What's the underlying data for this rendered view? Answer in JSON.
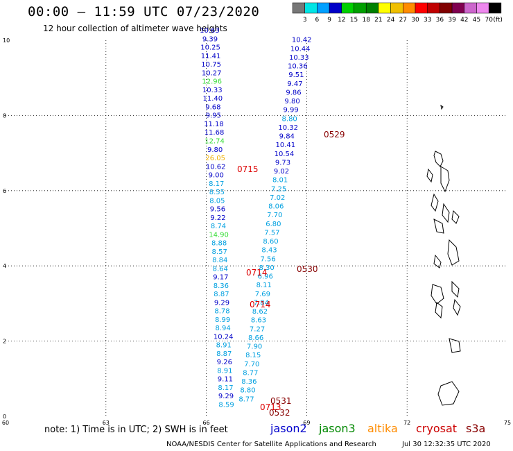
{
  "header": {
    "title": "00:00 – 11:59 UTC 07/23/2020",
    "subtitle": "12 hour collection of altimeter wave heights"
  },
  "color_legend": {
    "colors": [
      "#777777",
      "#00e5e5",
      "#00a0ff",
      "#0000c8",
      "#00d000",
      "#00a000",
      "#008000",
      "#ffff00",
      "#f0c000",
      "#ff8c00",
      "#ff0000",
      "#c00000",
      "#800000",
      "#800050",
      "#cc66cc",
      "#ee88ee",
      "#000000"
    ],
    "labels": [
      "3",
      "6",
      "9",
      "12",
      "15",
      "18",
      "21",
      "24",
      "27",
      "30",
      "33",
      "36",
      "39",
      "42",
      "45",
      "70"
    ],
    "unit": "(ft)"
  },
  "map": {
    "x_ticks": [
      "60",
      "63",
      "66",
      "69",
      "72",
      "75"
    ],
    "y_ticks": [
      "0",
      "2",
      "4",
      "6",
      "8",
      "10"
    ],
    "xlim": [
      60,
      75
    ],
    "ylim": [
      0,
      10
    ]
  },
  "tracks": [
    {
      "satellite": "jason2",
      "lon_start": 66.1,
      "lon_end": 66.6,
      "lat_start": 10.2,
      "lat_end": 0.25,
      "time_labels": [],
      "values": [
        "10.63",
        "9.39",
        "10.25",
        "11.41",
        "10.75",
        "10.27",
        "12.96",
        "10.33",
        "11.40",
        "9.68",
        "9.95",
        "11.18",
        "11.68",
        "12.74",
        "9.80",
        "26.05",
        "10.62",
        "9.00",
        "8.17",
        "8.55",
        "8.05",
        "9.56",
        "9.22",
        "8.74",
        "14.90",
        "8.88",
        "8.57",
        "8.84",
        "8.64",
        "9.17",
        "8.36",
        "8.87",
        "9.29",
        "8.78",
        "8.99",
        "8.94",
        "10.24",
        "8.91",
        "8.87",
        "9.26",
        "8.91",
        "9.11",
        "8.17",
        "9.29",
        "8.59"
      ]
    },
    {
      "satellite": "cryosat",
      "lon_start": 68.85,
      "lon_end": 67.2,
      "lat_start": 9.95,
      "lat_end": 0.4,
      "time_labels": [
        "0529",
        "0530",
        "0531",
        "0532"
      ],
      "values": [
        "10.42",
        "10.44",
        "10.33",
        "10.36",
        "9.51",
        "9.47",
        "9.86",
        "9.80",
        "9.99",
        "8.80",
        "10.32",
        "9.84",
        "10.41",
        "10.54",
        "9.73",
        "9.02",
        "8.01",
        "7.25",
        "7.02",
        "8.06",
        "7.70",
        "6.80",
        "7.57",
        "8.60",
        "8.43",
        "7.56",
        "8.30",
        "6.96",
        "8.11",
        "7.69",
        "7.84",
        "8.62",
        "8.63",
        "7.27",
        "8.66",
        "7.90",
        "8.15",
        "7.70",
        "8.77",
        "8.36",
        "8.80",
        "8.77"
      ]
    }
  ],
  "time_labels_extra": [
    "0715",
    "0714",
    "0714",
    "0713"
  ],
  "footer": {
    "note": "note: 1) Time is in UTC; 2) SWH is in feet",
    "satellites": [
      {
        "name": "jason2",
        "color": "#0000cc"
      },
      {
        "name": "jason3",
        "color": "#008800"
      },
      {
        "name": "altika",
        "color": "#ff8c00"
      },
      {
        "name": "cryosat",
        "color": "#cc0000"
      },
      {
        "name": "s3a",
        "color": "#880000"
      }
    ],
    "credit": "NOAA/NESDIS Center for Satellite Applications and Research",
    "timestamp": "Jul 30 12:32:35 UTC 2020"
  }
}
